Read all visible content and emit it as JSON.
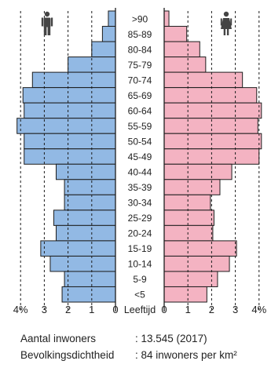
{
  "chart_data": {
    "type": "bar",
    "subtype": "population-pyramid",
    "categories": [
      ">90",
      "85-89",
      "80-84",
      "75-79",
      "70-74",
      "65-69",
      "60-64",
      "55-59",
      "50-54",
      "45-49",
      "40-44",
      "35-39",
      "30-34",
      "25-29",
      "20-24",
      "15-19",
      "10-14",
      "5-9",
      "<5"
    ],
    "center_label": "Leeftijd",
    "male_ticks": [
      "4%",
      "3",
      "2",
      "1",
      "0"
    ],
    "female_ticks": [
      "0",
      "1",
      "2",
      "3",
      "4%"
    ],
    "xlim": [
      0,
      4.5
    ],
    "series": [
      {
        "side": "left",
        "icon": "male-icon",
        "color": "#92b9e4",
        "values": [
          0.3,
          0.55,
          1.0,
          2.0,
          3.5,
          3.9,
          3.85,
          4.15,
          3.85,
          3.85,
          2.5,
          2.15,
          2.15,
          2.6,
          2.5,
          3.15,
          2.75,
          2.15,
          2.25
        ]
      },
      {
        "side": "right",
        "icon": "female-icon",
        "color": "#f4b3c2",
        "values": [
          0.2,
          0.95,
          1.5,
          1.75,
          3.3,
          3.9,
          4.1,
          3.95,
          4.1,
          4.0,
          2.85,
          2.35,
          1.95,
          2.1,
          2.05,
          3.05,
          2.75,
          2.25,
          1.8
        ]
      }
    ],
    "grid": "dashed vertical lines at 1, 2, 3 and 4 percent"
  },
  "info": {
    "inhabitants_label": "Aantal inwoners",
    "inhabitants_value": ": 13.545 (2017)",
    "density_label": "Bevolkingsdichtheid",
    "density_value": ": 84 inwoners per km²"
  }
}
